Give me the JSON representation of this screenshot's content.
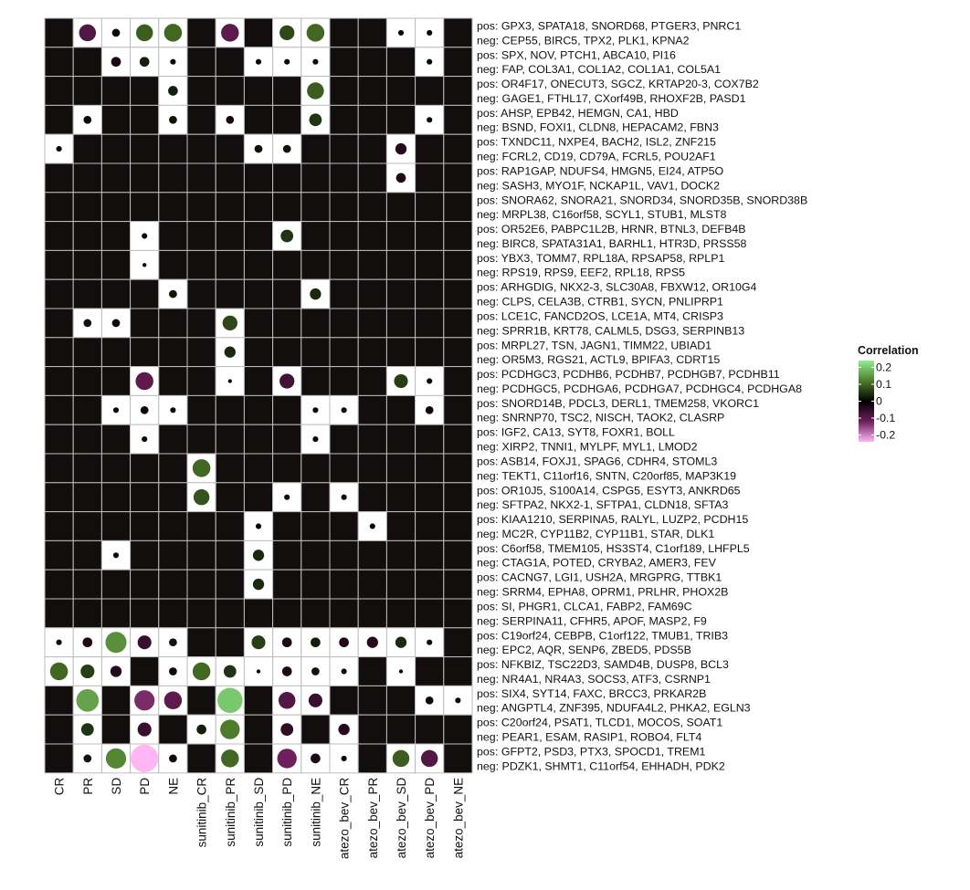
{
  "chart_data": {
    "type": "heatmap",
    "title": "",
    "xlabel": "",
    "ylabel": "",
    "columns": [
      "CR",
      "PR",
      "SD",
      "PD",
      "NE",
      "sunitinib_CR",
      "sunitinib_PR",
      "sunitinib_SD",
      "sunitinib_PD",
      "sunitinib_NE",
      "atezo_bev_CR",
      "atezo_bev_PR",
      "atezo_bev_SD",
      "atezo_bev_PD",
      "atezo_bev_NE"
    ],
    "rows": [
      [
        "pos: GPX3, SPATA18, SNORD68, PTGER3, PNRC1",
        "neg: CEP55, BIRC5, TPX2, PLK1, KPNA2"
      ],
      [
        "pos: SPX, NOV, PTCH1, ABCA10, PI16",
        "neg: FAP, COL3A1, COL1A2, COL1A1, COL5A1"
      ],
      [
        "pos: OR4F17, ONECUT3, SGCZ, KRTAP20-3, COX7B2",
        "neg: GAGE1, FTHL17, CXorf49B, RHOXF2B, PASD1"
      ],
      [
        "pos: AHSP, EPB42, HEMGN, CA1, HBD",
        "neg: BSND, FOXI1, CLDN8, HEPACAM2, FBN3"
      ],
      [
        "pos: TXNDC11, NXPE4, BACH2, ISL2, ZNF215",
        "neg: FCRL2, CD19, CD79A, FCRL5, POU2AF1"
      ],
      [
        "pos: RAP1GAP, NDUFS4, HMGN5, EI24, ATP5O",
        "neg: SASH3, MYO1F, NCKAP1L, VAV1, DOCK2"
      ],
      [
        "pos: SNORA62, SNORA21, SNORD34, SNORD35B, SNORD38B",
        "neg: MRPL38, C16orf58, SCYL1, STUB1, MLST8"
      ],
      [
        "pos: OR52E6, PABPC1L2B, HRNR, BTNL3, DEFB4B",
        "neg: BIRC8, SPATA31A1, BARHL1, HTR3D, PRSS58"
      ],
      [
        "pos: YBX3, TOMM7, RPL18A, RPSAP58, RPLP1",
        "neg: RPS19, RPS9, EEF2, RPL18, RPS5"
      ],
      [
        "pos: ARHGDIG, NKX2-3, SLC30A8, FBXW12, OR10G4",
        "neg: CLPS, CELA3B, CTRB1, SYCN, PNLIPRP1"
      ],
      [
        "pos: LCE1C, FANCD2OS, LCE1A, MT4, CRISP3",
        "neg: SPRR1B, KRT78, CALML5, DSG3, SERPINB13"
      ],
      [
        "pos: MRPL27, TSN, JAGN1, TIMM22, UBIAD1",
        "neg: OR5M3, RGS21, ACTL9, BPIFA3, CDRT15"
      ],
      [
        "pos: PCDHGC3, PCDHB6, PCDHB7, PCDHGB7, PCDHB11",
        "neg: PCDHGC5, PCDHGA6, PCDHGA7, PCDHGC4, PCDHGA8"
      ],
      [
        "pos: SNORD14B, PDCL3, DERL1, TMEM258, VKORC1",
        "neg: SNRNP70, TSC2, NISCH, TAOK2, CLASRP"
      ],
      [
        "pos: IGF2, CA13, SYT8, FOXR1, BOLL",
        "neg: XIRP2, TNNI1, MYLPF, MYL1, LMOD2"
      ],
      [
        "pos: ASB14, FOXJ1, SPAG6, CDHR4, STOML3",
        "neg: TEKT1, C11orf16, SNTN, C20orf85, MAP3K19"
      ],
      [
        "pos: OR10J5, S100A14, CSPG5, ESYT3, ANKRD65",
        "neg: SFTPA2, NKX2-1, SFTPA1, CLDN18, SFTA3"
      ],
      [
        "pos: KIAA1210, SERPINA5, RALYL, LUZP2, PCDH15",
        "neg: MC2R, CYP11B2, CYP11B1, STAR, DLK1"
      ],
      [
        "pos: C6orf58, TMEM105, HS3ST4, C1orf189, LHFPL5",
        "neg: CTAG1A, POTED, CRYBA2, AMER3, FEV"
      ],
      [
        "pos: CACNG7, LGI1, USH2A, MRGPRG, TTBK1",
        "neg: SRRM4, EPHA8, OPRM1, PRLHR, PHOX2B"
      ],
      [
        "pos: SI, PHGR1, CLCA1, FABP2, FAM69C",
        "neg: SERPINA11, CFHR5, APOF, MASP2, F9"
      ],
      [
        "pos: C19orf24, CEBPB, C1orf122, TMUB1, TRIB3",
        "neg: EPC2, AQR, SENP6, ZBED5, PDS5B"
      ],
      [
        "pos: NFKBIZ, TSC22D3, SAMD4B, DUSP8, BCL3",
        "neg: NR4A1, NR4A3, SOCS3, ATF3, CSRNP1"
      ],
      [
        "pos: SIX4, SYT14, FAXC, BRCC3, PRKAR2B",
        "neg: ANGPTL4, ZNF395, NDUFA4L2, PHKA2, EGLN3"
      ],
      [
        "pos: C20orf24, PSAT1, TLCD1, MOCOS, SOAT1",
        "neg: PEAR1, ESAM, RASIP1, ROBO4, FLT4"
      ],
      [
        "pos: GFPT2, PSD3, PTX3, SPOCD1, TREM1",
        "neg: PDZK1, SHMT1, C11orf54, EHHADH, PDK2"
      ]
    ],
    "cells": [
      [
        null,
        -0.09,
        -0.02,
        0.09,
        0.1,
        null,
        -0.1,
        null,
        0.07,
        0.1,
        null,
        null,
        0.01,
        0.01,
        null
      ],
      [
        null,
        null,
        -0.03,
        0.03,
        0.01,
        null,
        null,
        0.01,
        0.01,
        0.01,
        null,
        null,
        null,
        0.01,
        null
      ],
      [
        null,
        null,
        null,
        null,
        0.03,
        null,
        null,
        null,
        null,
        0.09,
        null,
        null,
        null,
        null,
        null
      ],
      [
        null,
        -0.02,
        null,
        null,
        0.02,
        null,
        -0.02,
        null,
        null,
        0.05,
        null,
        null,
        null,
        0.01,
        null
      ],
      [
        0.01,
        null,
        null,
        null,
        null,
        null,
        null,
        0.02,
        0.02,
        null,
        null,
        null,
        -0.04,
        null,
        null
      ],
      [
        null,
        null,
        null,
        null,
        null,
        null,
        null,
        null,
        null,
        null,
        null,
        null,
        -0.03,
        null,
        null
      ],
      [
        null,
        null,
        null,
        null,
        null,
        null,
        null,
        null,
        null,
        null,
        null,
        null,
        null,
        null,
        null
      ],
      [
        null,
        null,
        null,
        0.01,
        null,
        null,
        null,
        null,
        0.05,
        null,
        null,
        null,
        null,
        null,
        null
      ],
      [
        null,
        null,
        null,
        0.005,
        null,
        null,
        null,
        null,
        null,
        null,
        null,
        null,
        null,
        null,
        null
      ],
      [
        null,
        null,
        null,
        null,
        0.02,
        null,
        null,
        null,
        null,
        0.04,
        null,
        null,
        null,
        null,
        null
      ],
      [
        null,
        0.02,
        -0.02,
        null,
        null,
        null,
        0.07,
        null,
        null,
        null,
        null,
        null,
        null,
        null,
        null
      ],
      [
        null,
        null,
        null,
        null,
        null,
        null,
        0.04,
        null,
        null,
        null,
        null,
        null,
        null,
        null,
        null
      ],
      [
        null,
        null,
        null,
        -0.1,
        null,
        null,
        0.005,
        null,
        -0.07,
        null,
        null,
        null,
        0.06,
        0.01,
        null
      ],
      [
        null,
        null,
        0.01,
        -0.02,
        0.01,
        null,
        null,
        null,
        null,
        0.01,
        0.01,
        null,
        null,
        -0.02,
        null
      ],
      [
        null,
        null,
        null,
        0.01,
        null,
        null,
        null,
        null,
        null,
        0.01,
        null,
        null,
        null,
        null,
        null
      ],
      [
        null,
        null,
        null,
        null,
        null,
        0.1,
        null,
        null,
        null,
        null,
        null,
        null,
        null,
        null,
        null
      ],
      [
        null,
        null,
        null,
        null,
        null,
        0.08,
        null,
        null,
        0.01,
        null,
        0.01,
        null,
        null,
        null,
        null
      ],
      [
        null,
        null,
        null,
        null,
        null,
        null,
        null,
        0.01,
        null,
        null,
        null,
        0.01,
        null,
        null,
        null
      ],
      [
        null,
        null,
        0.01,
        null,
        null,
        null,
        null,
        0.04,
        null,
        null,
        null,
        null,
        null,
        null,
        null
      ],
      [
        null,
        null,
        null,
        null,
        null,
        null,
        null,
        0.04,
        null,
        null,
        null,
        null,
        null,
        null,
        null
      ],
      [
        null,
        null,
        null,
        null,
        null,
        null,
        null,
        null,
        null,
        null,
        null,
        null,
        null,
        null,
        null
      ],
      [
        -0.01,
        -0.03,
        0.14,
        -0.06,
        0.02,
        null,
        null,
        0.06,
        -0.03,
        0.03,
        -0.03,
        -0.04,
        0.04,
        0.01,
        null
      ],
      [
        0.1,
        0.06,
        -0.04,
        null,
        -0.02,
        0.1,
        0.05,
        0.005,
        -0.03,
        0.02,
        0.01,
        null,
        0.005,
        null,
        null
      ],
      [
        null,
        0.16,
        null,
        -0.13,
        -0.1,
        null,
        0.2,
        null,
        -0.09,
        -0.06,
        null,
        null,
        null,
        -0.02,
        0.01
      ],
      [
        null,
        0.05,
        null,
        -0.06,
        null,
        0.03,
        0.12,
        null,
        -0.05,
        null,
        -0.04,
        null,
        null,
        null,
        null
      ],
      [
        null,
        0.02,
        0.13,
        -0.24,
        -0.02,
        null,
        0.1,
        null,
        -0.12,
        -0.03,
        0.01,
        null,
        0.09,
        -0.09,
        null
      ]
    ],
    "legend": {
      "title": "Correlation",
      "ticks": [
        "0.2",
        "0.1",
        "0",
        "-0.1",
        "-0.2"
      ],
      "tick_values": [
        0.2,
        0.1,
        0,
        -0.1,
        -0.2
      ],
      "range": [
        -0.24,
        0.24
      ],
      "placement": "right"
    },
    "colors": {
      "empty": "#120e0e",
      "cell_bg": "#ffffff",
      "grid": "#bdbdbd",
      "high": "#90ee90",
      "mid_pos": "#4f7c2a",
      "zero": "#000000",
      "mid_neg": "#6e1f5c",
      "low": "#ffb6f2"
    }
  }
}
